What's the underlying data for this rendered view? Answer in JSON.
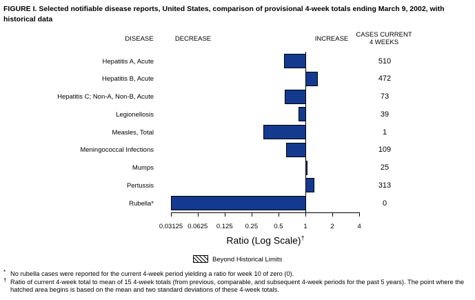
{
  "title": "FIGURE I. Selected notifiable disease reports, United States, comparison of provisional 4-week totals ending March 9, 2002, with historical data",
  "headers": {
    "disease": "DISEASE",
    "decrease": "DECREASE",
    "increase": "INCREASE",
    "cases_line1": "CASES CURRENT",
    "cases_line2": "4 WEEKS"
  },
  "chart_data": {
    "type": "bar",
    "orientation": "horizontal",
    "x_scale": "log2",
    "x_ticks": [
      0.03125,
      0.0625,
      0.125,
      0.25,
      0.5,
      1,
      2,
      4
    ],
    "x_tick_labels": [
      "0.03125",
      "0.0625",
      "0.125",
      "0.25",
      "0.5",
      "1",
      "2",
      "4"
    ],
    "xlabel": "Ratio (Log Scale)",
    "xlabel_sup": "†",
    "baseline": 1,
    "bar_color": "#143a8f",
    "note": "ratio 0 bars are drawn to the left edge of the scale",
    "rows": [
      {
        "disease": "Hepatitis A, Acute",
        "ratio": 0.58,
        "cases": "510"
      },
      {
        "disease": "Hepatitis B, Acute",
        "ratio": 1.37,
        "cases": "472"
      },
      {
        "disease": "Hepatitis C; Non-A, Non-B, Acute",
        "ratio": 0.59,
        "cases": "73"
      },
      {
        "disease": "Legionellosis",
        "ratio": 0.84,
        "cases": "39"
      },
      {
        "disease": "Measles, Total",
        "ratio": 0.34,
        "cases": "1"
      },
      {
        "disease": "Meningococcal Infections",
        "ratio": 0.61,
        "cases": "109"
      },
      {
        "disease": "Mumps",
        "ratio": 1.06,
        "cases": "25"
      },
      {
        "disease": "Pertussis",
        "ratio": 1.27,
        "cases": "313"
      },
      {
        "disease": "Rubella*",
        "ratio": 0,
        "cases": "0"
      }
    ]
  },
  "legend": {
    "label": "Beyond Historical Limits"
  },
  "footnotes": [
    {
      "marker": "*",
      "text": "No rubella cases were reported for the current 4-week period yielding a ratio for week 10 of zero (0)."
    },
    {
      "marker": "†",
      "text": "Ratio of current 4-week total to mean of 15 4-week totals (from previous, comparable, and subsequent 4-week periods for the past 5 years). The point where the hatched area begins is based on the mean and two standard deviations of these 4-week totals."
    }
  ]
}
